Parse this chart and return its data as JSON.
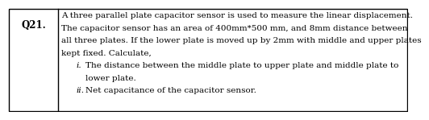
{
  "question_number": "Q21.",
  "background_color": "#ffffff",
  "border_color": "#000000",
  "text_color": "#000000",
  "q_label_fontsize": 8.5,
  "q_label_fontweight": "bold",
  "body_fontsize": 7.5,
  "line1": "A three parallel plate capacitor sensor is used to measure the linear displacement.",
  "line2": "The capacitor sensor has an area of 400mm*500 mm, and 8mm distance between",
  "line3": "all three plates. If the lower plate is moved up by 2mm with middle and upper plates",
  "line4": "kept fixed. Calculate,",
  "sub_i_label": "i.",
  "sub_i_text": "The distance between the middle plate to upper plate and middle plate to",
  "sub_i_cont": "lower plate.",
  "sub_ii_label": "ii.",
  "sub_ii_text": "Net capacitance of the capacitor sensor."
}
